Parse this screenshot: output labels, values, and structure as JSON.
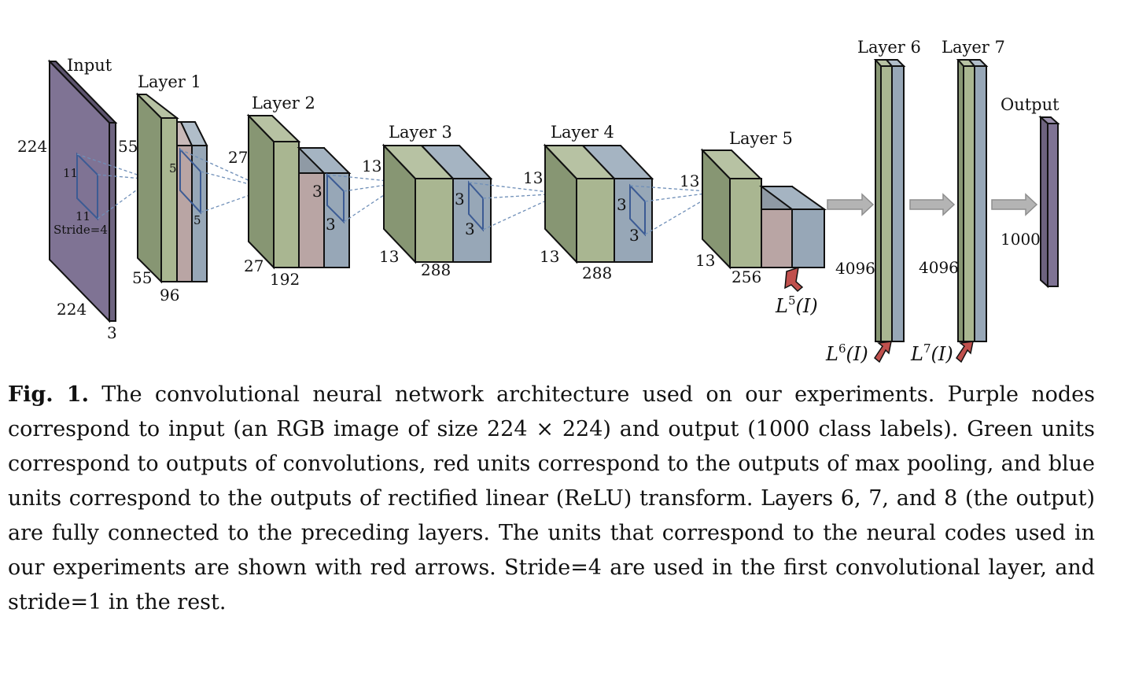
{
  "diagram": {
    "input": {
      "title": "Input",
      "height": "224",
      "width": "224",
      "depth": "3",
      "kernel_h": "11",
      "kernel_w": "11",
      "stride": "Stride=4"
    },
    "layer1": {
      "title": "Layer 1",
      "height": "55",
      "width": "55",
      "depth": "96",
      "kernel": "5",
      "kernel2": "5"
    },
    "layer2": {
      "title": "Layer 2",
      "height": "27",
      "width": "27",
      "depth": "192",
      "kernel": "3",
      "kernel2": "3"
    },
    "layer3": {
      "title": "Layer 3",
      "height": "13",
      "width": "13",
      "depth": "288",
      "kernel": "3",
      "kernel2": "3"
    },
    "layer4": {
      "title": "Layer 4",
      "height": "13",
      "width": "13",
      "depth": "288",
      "kernel": "3",
      "kernel2": "3"
    },
    "layer5": {
      "title": "Layer 5",
      "height": "13",
      "width": "13",
      "depth": "256"
    },
    "layer6": {
      "title": "Layer 6",
      "size": "4096"
    },
    "layer7": {
      "title": "Layer 7",
      "size": "4096"
    },
    "output": {
      "title": "Output",
      "size": "1000"
    },
    "codes": {
      "l5": {
        "base": "L",
        "sup": "5",
        "arg": "(I)"
      },
      "l6": {
        "base": "L",
        "sup": "6",
        "arg": "(I)"
      },
      "l7": {
        "base": "L",
        "sup": "7",
        "arg": "(I)"
      }
    },
    "colors": {
      "input": "#7f7394",
      "green_front": "#a9b691",
      "green_side": "#879673",
      "red_front": "#b9a5a4",
      "blue_front": "#97a7b7",
      "arrow_grey": "#b4b4b4",
      "code_arrow": "#c0504d",
      "kernel": "#3c5b94"
    }
  },
  "caption": {
    "fig_label": "Fig. 1.",
    "text": "The convolutional neural network architecture used on our experiments. Purple nodes correspond to input (an RGB image of size 224 × 224) and output (1000 class labels). Green units correspond to outputs of convolutions, red units correspond to the outputs of max pooling, and blue units correspond to the outputs of rectified linear (ReLU) transform. Layers 6, 7, and 8 (the output) are fully connected to the preceding layers. The units that correspond to the neural codes used in our experiments are shown with red arrows. Stride=4 are used in the first convolutional layer, and stride=1 in the rest."
  }
}
